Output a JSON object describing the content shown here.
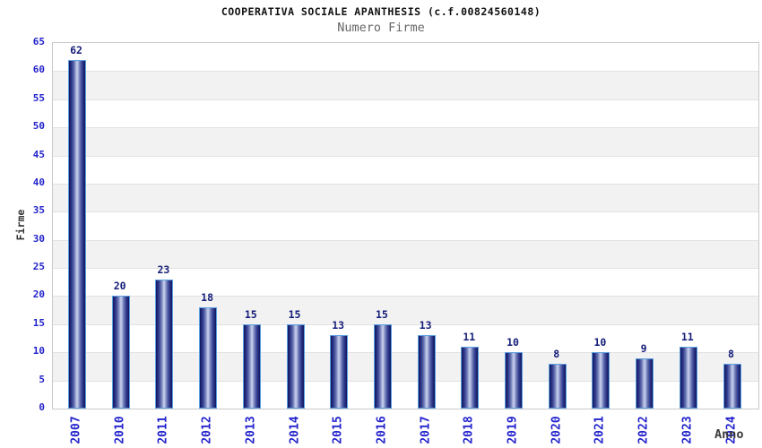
{
  "chart_data": {
    "type": "bar",
    "title": "COOPERATIVA SOCIALE APANTHESIS (c.f.00824560148)",
    "subtitle": "Numero Firme",
    "categories": [
      "2007",
      "2010",
      "2011",
      "2012",
      "2013",
      "2014",
      "2015",
      "2016",
      "2017",
      "2018",
      "2019",
      "2020",
      "2021",
      "2022",
      "2023",
      "2024"
    ],
    "values": [
      62,
      20,
      23,
      18,
      15,
      15,
      13,
      15,
      13,
      11,
      10,
      8,
      10,
      9,
      11,
      8
    ],
    "xlabel": "Anno",
    "ylabel": "Firme",
    "ylim": [
      0,
      65
    ],
    "ytick_step": 5,
    "yticks": [
      0,
      5,
      10,
      15,
      20,
      25,
      30,
      35,
      40,
      45,
      50,
      55,
      60,
      65
    ],
    "grid": "horizontal-bands-on",
    "legend": "none",
    "bar_labels_shown": true,
    "colors": {
      "bar_dark": "#10165a",
      "bar_light": "#ccd3ee",
      "bar_border": "#5b9fe0",
      "axis_tick_label": "#2323cc",
      "value_label": "#141c78",
      "band_gray": "#f2f2f2",
      "gridline": "#e2e2e2",
      "plot_border": "#c9c9c9",
      "title": "#111111",
      "subtitle": "#666666",
      "axis_title": "#3a3a3a"
    }
  }
}
